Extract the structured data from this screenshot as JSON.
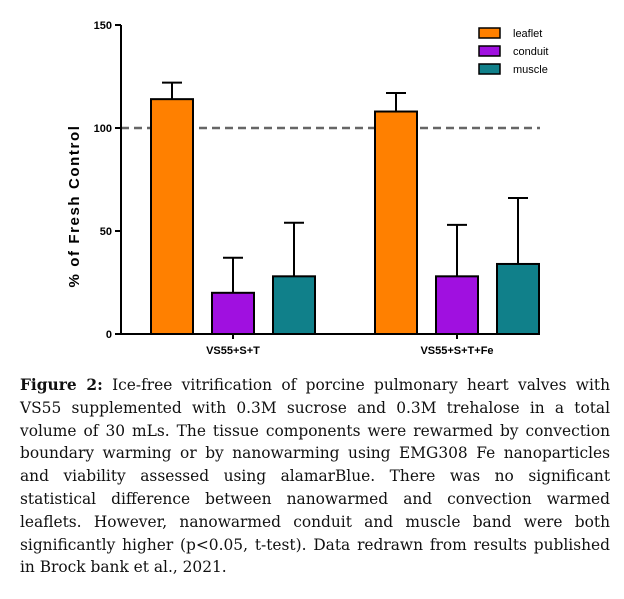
{
  "chart_data": {
    "type": "bar",
    "title": "",
    "xlabel": "",
    "ylabel": "% of Fresh Control",
    "ylim": [
      0,
      150
    ],
    "yticks": [
      0,
      50,
      100,
      150
    ],
    "categories": [
      "VS55+S+T",
      "VS55+S+T+Fe"
    ],
    "series": [
      {
        "name": "leaflet",
        "color": "#FF8000",
        "values": [
          114,
          108
        ],
        "errors": [
          8,
          9
        ]
      },
      {
        "name": "conduit",
        "color": "#A010E0",
        "values": [
          20,
          28
        ],
        "errors": [
          17,
          25
        ]
      },
      {
        "name": "muscle",
        "color": "#10808A",
        "values": [
          28,
          34
        ],
        "errors": [
          26,
          32
        ]
      }
    ],
    "reference_line": {
      "value": 100,
      "style": "dashed",
      "color": "#666666"
    },
    "legend": "top-right"
  },
  "caption": {
    "label": "Figure 2:",
    "text": "Ice-free vitrification of porcine pulmonary heart valves with VS55 supplemented with 0.3M sucrose and 0.3M trehalose in a total volume of 30 mLs. The tissue components were rewarmed by convection boundary warming or by nanowarming using EMG308 Fe nanoparticles and viability assessed using alamarBlue. There was no significant statistical difference between nanowarmed and convection warmed leaflets. However, nanowarmed conduit and muscle band were both significantly higher (p<0.05, t-test). Data redrawn from results published in Brock bank et al., 2021."
  }
}
